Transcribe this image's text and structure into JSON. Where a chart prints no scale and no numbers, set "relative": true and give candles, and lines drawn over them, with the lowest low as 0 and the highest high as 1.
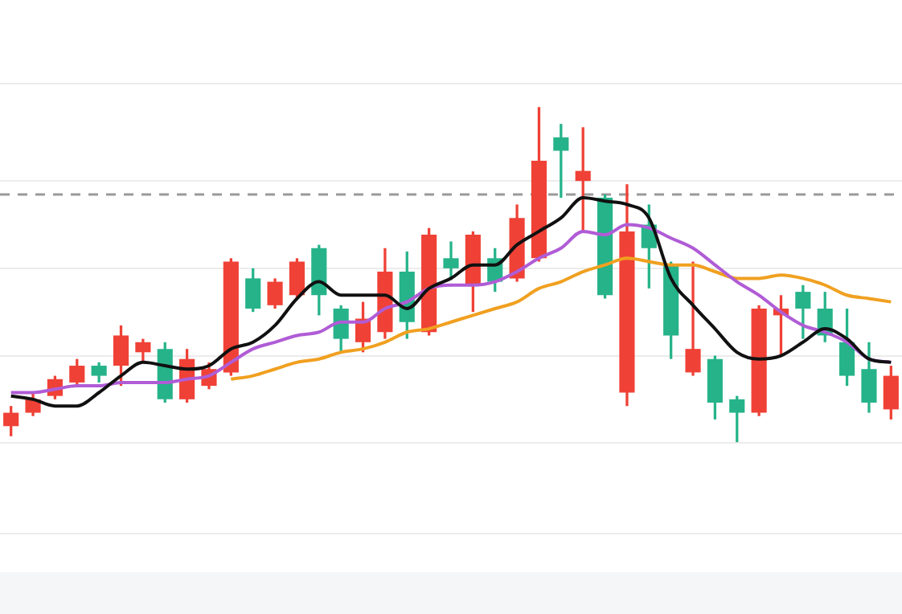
{
  "chart_data": {
    "type": "candlestick",
    "relative": true,
    "grid": "y",
    "legend": false,
    "categories": [
      null,
      null,
      null,
      null,
      null,
      null,
      null,
      null,
      null,
      null,
      null,
      null,
      null,
      null,
      null,
      null,
      null,
      null,
      null,
      null,
      null,
      null,
      null,
      null,
      null,
      null,
      null,
      null,
      null,
      null,
      null,
      null,
      null,
      null,
      null,
      null,
      null,
      null,
      null,
      null,
      null
    ],
    "ohlc": [
      [
        0.05,
        0.11,
        0.02,
        0.09
      ],
      [
        0.09,
        0.15,
        0.08,
        0.13
      ],
      [
        0.14,
        0.2,
        0.13,
        0.19
      ],
      [
        0.18,
        0.25,
        0.17,
        0.23
      ],
      [
        0.23,
        0.24,
        0.18,
        0.2
      ],
      [
        0.23,
        0.35,
        0.17,
        0.32
      ],
      [
        0.27,
        0.31,
        0.24,
        0.3
      ],
      [
        0.28,
        0.3,
        0.12,
        0.13
      ],
      [
        0.13,
        0.28,
        0.12,
        0.25
      ],
      [
        0.17,
        0.24,
        0.16,
        0.22
      ],
      [
        0.21,
        0.55,
        0.2,
        0.54
      ],
      [
        0.49,
        0.52,
        0.39,
        0.4
      ],
      [
        0.41,
        0.49,
        0.4,
        0.48
      ],
      [
        0.44,
        0.55,
        0.43,
        0.54
      ],
      [
        0.58,
        0.59,
        0.38,
        0.44
      ],
      [
        0.4,
        0.41,
        0.27,
        0.31
      ],
      [
        0.3,
        0.42,
        0.27,
        0.37
      ],
      [
        0.33,
        0.58,
        0.31,
        0.51
      ],
      [
        0.51,
        0.57,
        0.31,
        0.36
      ],
      [
        0.33,
        0.64,
        0.32,
        0.62
      ],
      [
        0.55,
        0.6,
        0.49,
        0.52
      ],
      [
        0.47,
        0.63,
        0.39,
        0.62
      ],
      [
        0.55,
        0.58,
        0.45,
        0.48
      ],
      [
        0.49,
        0.71,
        0.48,
        0.67
      ],
      [
        0.55,
        1,
        0.54,
        0.84
      ],
      [
        0.91,
        0.95,
        0.73,
        0.87
      ],
      [
        0.78,
        0.94,
        0.63,
        0.81
      ],
      [
        0.73,
        0.74,
        0.43,
        0.44
      ],
      [
        0.15,
        0.77,
        0.11,
        0.63
      ],
      [
        0.65,
        0.71,
        0.46,
        0.58
      ],
      [
        0.53,
        0.54,
        0.25,
        0.32
      ],
      [
        0.21,
        0.54,
        0.2,
        0.28
      ],
      [
        0.25,
        0.26,
        0.07,
        0.12
      ],
      [
        0.13,
        0.14,
        0,
        0.09
      ],
      [
        0.09,
        0.41,
        0.08,
        0.4
      ],
      [
        0.38,
        0.44,
        0.26,
        0.4
      ],
      [
        0.45,
        0.47,
        0.31,
        0.4
      ],
      [
        0.4,
        0.45,
        0.3,
        0.32
      ],
      [
        0.3,
        0.4,
        0.17,
        0.2
      ],
      [
        0.22,
        0.3,
        0.09,
        0.12
      ],
      [
        0.1,
        0.23,
        0.07,
        0.2
      ]
    ],
    "colors": [
      "#ef4136",
      "#ef4136",
      "#ef4136",
      "#ef4136",
      "#26b38a",
      "#ef4136",
      "#ef4136",
      "#26b38a",
      "#ef4136",
      "#ef4136",
      "#ef4136",
      "#26b38a",
      "#ef4136",
      "#ef4136",
      "#26b38a",
      "#26b38a",
      "#ef4136",
      "#ef4136",
      "#26b38a",
      "#ef4136",
      "#26b38a",
      "#ef4136",
      "#26b38a",
      "#ef4136",
      "#ef4136",
      "#26b38a",
      "#ef4136",
      "#26b38a",
      "#ef4136",
      "#26b38a",
      "#26b38a",
      "#ef4136",
      "#26b38a",
      "#26b38a",
      "#ef4136",
      "#ef4136",
      "#26b38a",
      "#26b38a",
      "#26b38a",
      "#26b38a",
      "#ef4136"
    ],
    "series": [
      {
        "type": "line",
        "color": "#111111",
        "values": [
          0.14,
          0.13,
          0.11,
          0.11,
          0.15,
          0.2,
          0.24,
          0.23,
          0.22,
          0.23,
          0.28,
          0.3,
          0.35,
          0.43,
          0.48,
          0.44,
          0.44,
          0.44,
          0.4,
          0.46,
          0.49,
          0.53,
          0.53,
          0.59,
          0.63,
          0.67,
          0.73,
          0.72,
          0.71,
          0.67,
          0.49,
          0.41,
          0.34,
          0.27,
          0.25,
          0.26,
          0.3,
          0.34,
          0.31,
          0.25,
          0.24
        ]
      },
      {
        "type": "line",
        "color": "#b05cd6",
        "values": [
          0.15,
          0.15,
          0.16,
          0.17,
          0.17,
          0.18,
          0.18,
          0.18,
          0.19,
          0.2,
          0.24,
          0.28,
          0.3,
          0.32,
          0.33,
          0.36,
          0.36,
          0.4,
          0.42,
          0.46,
          0.47,
          0.47,
          0.48,
          0.51,
          0.55,
          0.58,
          0.63,
          0.62,
          0.65,
          0.64,
          0.61,
          0.58,
          0.53,
          0.48,
          0.44,
          0.39,
          0.35,
          0.33,
          0.3,
          0.25,
          0.24
        ]
      },
      {
        "type": "line",
        "color": "#f0a020",
        "values": [
          null,
          null,
          null,
          null,
          null,
          null,
          null,
          null,
          null,
          null,
          0.19,
          0.2,
          0.22,
          0.24,
          0.25,
          0.27,
          0.28,
          0.3,
          0.33,
          0.34,
          0.36,
          0.38,
          0.4,
          0.42,
          0.46,
          0.48,
          0.51,
          0.53,
          0.55,
          0.54,
          0.53,
          0.53,
          0.51,
          0.49,
          0.49,
          0.5,
          0.49,
          0.47,
          0.44,
          0.43,
          0.42
        ]
      }
    ],
    "ref_lines": [
      {
        "axis": "y",
        "value": 0.74,
        "color": "#999999",
        "line_style": "dashed"
      }
    ]
  }
}
